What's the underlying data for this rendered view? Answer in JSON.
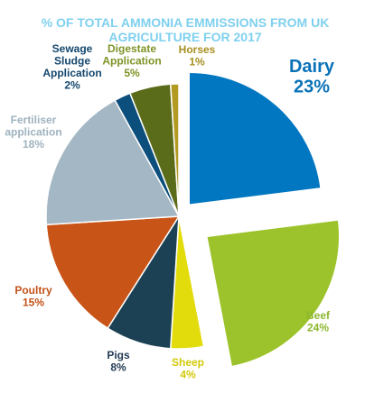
{
  "chart_data": {
    "type": "pie",
    "title": "% OF TOTAL AMMONIA EMMISSIONS FROM UK AGRICULTURE FOR 2017",
    "unit": "%",
    "slices": [
      {
        "name": "Dairy",
        "value": 23,
        "value_label": "23%",
        "color": "#0077c0",
        "label_color": "#0a72b8"
      },
      {
        "name": "Beef",
        "value": 24,
        "value_label": "24%",
        "color": "#9cc32b",
        "label_color": "#8db72c"
      },
      {
        "name": "Sheep",
        "value": 4,
        "value_label": "4%",
        "color": "#e3dc0c",
        "label_color": "#d4c90a"
      },
      {
        "name": "Pigs",
        "value": 8,
        "value_label": "8%",
        "color": "#1c4154",
        "label_color": "#243b55"
      },
      {
        "name": "Poultry",
        "value": 15,
        "value_label": "15%",
        "color": "#c85417",
        "label_color": "#c25218"
      },
      {
        "name": "Fertiliser application",
        "value": 18,
        "value_label": "18%",
        "color": "#a4b7c4",
        "label_color": "#9fb3bf"
      },
      {
        "name": "Sewage Sludge Application",
        "value": 2,
        "value_label": "2%",
        "color": "#0c4f7c",
        "label_color": "#14476e"
      },
      {
        "name": "Digestate Application",
        "value": 5,
        "value_label": "5%",
        "color": "#5a6b19",
        "label_color": "#7e9427"
      },
      {
        "name": "Horses",
        "value": 1,
        "value_label": "1%",
        "color": "#b39a22",
        "label_color": "#a88f21"
      }
    ]
  }
}
